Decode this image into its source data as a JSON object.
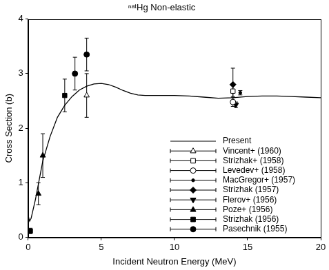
{
  "chart_data": {
    "type": "scatter",
    "title": "ⁿᵃᵗHg Non-elastic",
    "x_label": "Incident Neutron Energy (MeV)",
    "y_label": "Cross Section (b)",
    "xlim": [
      0,
      20
    ],
    "ylim": [
      0,
      4
    ],
    "xticks": [
      0,
      5,
      10,
      15,
      20
    ],
    "yticks": [
      0,
      1,
      2,
      3,
      4
    ],
    "grid": false,
    "legend": "lower right",
    "series": [
      {
        "name": "Present",
        "type": "line",
        "line_style": "solid",
        "color": "#000000",
        "x": [
          0,
          0.1,
          0.2,
          0.5,
          1,
          1.5,
          2,
          2.5,
          3,
          3.5,
          4,
          4.5,
          5,
          5.5,
          6,
          6.5,
          7,
          7.5,
          8,
          9,
          10,
          11,
          12,
          13,
          14,
          15,
          16,
          17,
          18,
          19,
          20
        ],
        "values": [
          0.4,
          0.3,
          0.35,
          0.7,
          1.4,
          1.85,
          2.2,
          2.42,
          2.58,
          2.7,
          2.77,
          2.81,
          2.82,
          2.8,
          2.75,
          2.69,
          2.64,
          2.61,
          2.6,
          2.6,
          2.6,
          2.59,
          2.57,
          2.55,
          2.56,
          2.58,
          2.59,
          2.59,
          2.58,
          2.57,
          2.56
        ]
      },
      {
        "name": "Vincent+ (1960)",
        "type": "scatter",
        "marker": "triangle-open",
        "color": "#000000",
        "x": [
          4.0
        ],
        "values": [
          2.6
        ],
        "errors": [
          0.4
        ]
      },
      {
        "name": "Strizhak+ (1958)",
        "type": "scatter",
        "marker": "square-open",
        "color": "#000000",
        "x": [
          14.0
        ],
        "values": [
          2.68
        ],
        "errors": [
          0.1
        ]
      },
      {
        "name": "Levedev+ (1958)",
        "type": "scatter",
        "marker": "circle-open",
        "color": "#000000",
        "x": [
          14.0
        ],
        "values": [
          2.48
        ],
        "errors": [
          0.08
        ]
      },
      {
        "name": "MacGregor+ (1957)",
        "type": "scatter",
        "marker": "point",
        "color": "#000000",
        "x": [
          14.5
        ],
        "values": [
          2.65
        ],
        "errors": [
          0.04
        ]
      },
      {
        "name": "Strizhak (1957)",
        "type": "scatter",
        "marker": "diamond",
        "color": "#000000",
        "x": [
          14.0
        ],
        "values": [
          2.8
        ],
        "errors": [
          0.3
        ]
      },
      {
        "name": "Flerov+ (1956)",
        "type": "scatter",
        "marker": "triangle-down",
        "color": "#000000",
        "x": [
          14.2
        ],
        "values": [
          2.43
        ],
        "errors": [
          0.05
        ]
      },
      {
        "name": "Poze+ (1956)",
        "type": "scatter",
        "marker": "triangle",
        "color": "#000000",
        "x": [
          0.7,
          1.0
        ],
        "values": [
          0.8,
          1.5
        ],
        "errors": [
          0.2,
          0.4
        ]
      },
      {
        "name": "Strizhak (1956)",
        "type": "scatter",
        "marker": "square",
        "color": "#000000",
        "x": [
          0.15,
          2.5
        ],
        "values": [
          0.12,
          2.6
        ],
        "errors": [
          0.05,
          0.3
        ]
      },
      {
        "name": "Pasechnik (1955)",
        "type": "scatter",
        "marker": "circle",
        "color": "#000000",
        "x": [
          3.2,
          4.0
        ],
        "values": [
          3.0,
          3.35
        ],
        "errors": [
          0.3,
          0.3
        ]
      }
    ]
  }
}
